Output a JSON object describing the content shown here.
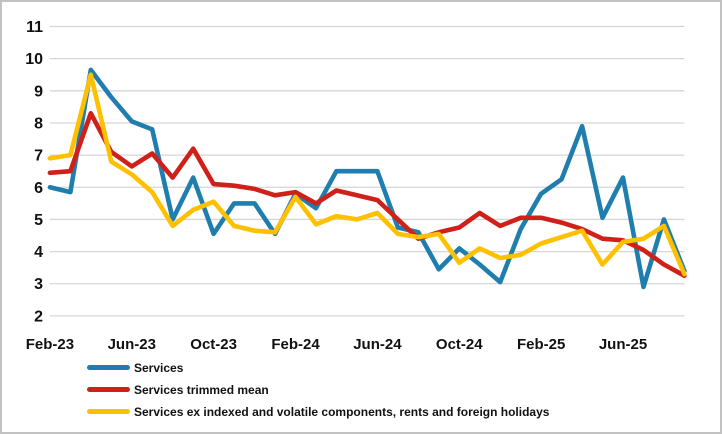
{
  "chart_data": {
    "type": "line",
    "grid": "horizontal",
    "grid_color": "#d6d6d6",
    "legend_position": "bottom-left",
    "ylim": [
      2,
      11
    ],
    "y_ticks": [
      2,
      3,
      4,
      5,
      6,
      7,
      8,
      9,
      10,
      11
    ],
    "x_labels": [
      "Feb-23",
      "Mar-23",
      "Apr-23",
      "May-23",
      "Jun-23",
      "Jul-23",
      "Aug-23",
      "Sep-23",
      "Oct-23",
      "Nov-23",
      "Dec-23",
      "Jan-24",
      "Feb-24",
      "Mar-24",
      "Apr-24",
      "May-24",
      "Jun-24",
      "Jul-24",
      "Aug-24",
      "Sep-24",
      "Oct-24",
      "Nov-24",
      "Dec-24",
      "Jan-25",
      "Feb-25",
      "Mar-25",
      "Apr-25",
      "May-25",
      "Jun-25",
      "Jul-25",
      "Aug-25",
      "Sep-25"
    ],
    "x_ticks": [
      {
        "index": 0,
        "label": "Feb-23"
      },
      {
        "index": 4,
        "label": "Jun-23"
      },
      {
        "index": 8,
        "label": "Oct-23"
      },
      {
        "index": 12,
        "label": "Feb-24"
      },
      {
        "index": 16,
        "label": "Jun-24"
      },
      {
        "index": 20,
        "label": "Oct-24"
      },
      {
        "index": 24,
        "label": "Feb-25"
      },
      {
        "index": 28,
        "label": "Jun-25"
      }
    ],
    "series": [
      {
        "name": "Services",
        "color": "#1f7eae",
        "values": [
          6.0,
          5.85,
          9.65,
          8.8,
          8.05,
          7.8,
          5.0,
          6.3,
          4.55,
          5.5,
          5.5,
          4.55,
          5.8,
          5.35,
          6.5,
          6.5,
          6.5,
          4.75,
          4.6,
          3.45,
          4.1,
          3.6,
          3.05,
          4.7,
          5.8,
          6.25,
          7.9,
          5.05,
          6.3,
          2.9,
          5.0,
          3.4
        ]
      },
      {
        "name": "Services trimmed mean",
        "color": "#d0201a",
        "values": [
          6.45,
          6.5,
          8.3,
          7.1,
          6.65,
          7.05,
          6.3,
          7.2,
          6.1,
          6.05,
          5.95,
          5.75,
          5.85,
          5.5,
          5.9,
          5.75,
          5.6,
          5.0,
          4.4,
          4.6,
          4.75,
          5.2,
          4.8,
          5.05,
          5.05,
          4.9,
          4.7,
          4.4,
          4.35,
          4.05,
          3.6,
          3.25
        ]
      },
      {
        "name": "Services ex indexed and volatile components, rents and foreign holidays",
        "color": "#ffc000",
        "values": [
          6.9,
          7.0,
          9.5,
          6.8,
          6.4,
          5.85,
          4.8,
          5.3,
          5.55,
          4.8,
          4.65,
          4.6,
          5.7,
          4.85,
          5.1,
          5.0,
          5.2,
          4.55,
          4.45,
          4.55,
          3.65,
          4.1,
          3.8,
          3.9,
          4.25,
          4.45,
          4.65,
          3.6,
          4.3,
          4.4,
          4.8,
          3.3
        ]
      }
    ]
  }
}
